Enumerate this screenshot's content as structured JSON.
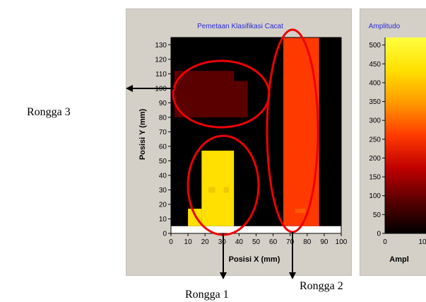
{
  "callouts": {
    "rongga_3": "Rongga 3",
    "rongga_1": "Rongga 1",
    "rongga_2": "Rongga 2"
  },
  "chart_data": [
    {
      "type": "heatmap",
      "title": "Pemetaan Klasifikasi Cacat",
      "xlabel": "Posisi X (mm)",
      "ylabel": "Posisi Y (mm)",
      "xlim": [
        0,
        100
      ],
      "ylim": [
        0,
        130
      ],
      "xticks": [
        0,
        10,
        20,
        30,
        40,
        50,
        60,
        70,
        80,
        90,
        100
      ],
      "yticks": [
        0,
        10,
        20,
        30,
        40,
        50,
        60,
        70,
        80,
        90,
        100,
        110,
        120,
        130
      ],
      "grid": false,
      "regions": [
        {
          "x": [
            0,
            100
          ],
          "y": [
            5,
            135
          ],
          "amplitude": 0,
          "color": "#000000"
        },
        {
          "x": [
            2,
            37
          ],
          "y": [
            80,
            112
          ],
          "amplitude": 115,
          "color": "#5a0000"
        },
        {
          "x": [
            37,
            45
          ],
          "y": [
            80,
            105
          ],
          "amplitude": 115,
          "color": "#5a0000"
        },
        {
          "x": [
            10,
            18
          ],
          "y": [
            5,
            17
          ],
          "amplitude": 480,
          "color": "#ffe000"
        },
        {
          "x": [
            18,
            37
          ],
          "y": [
            5,
            57
          ],
          "amplitude": 480,
          "color": "#ffe000"
        },
        {
          "x": [
            66,
            87
          ],
          "y": [
            5,
            135
          ],
          "amplitude": 330,
          "color": "#ff3a00"
        }
      ]
    },
    {
      "type": "heatmap",
      "title": "Amplitudo",
      "xlabel": "Ampl",
      "ylabel": "",
      "ylim": [
        0,
        520
      ],
      "yticks": [
        0,
        50,
        100,
        150,
        200,
        250,
        300,
        350,
        400,
        450,
        500
      ],
      "xticks": [
        "0",
        "10"
      ],
      "colormap": [
        "#000000",
        "#5a0000",
        "#c00000",
        "#ff3a00",
        "#ff9a00",
        "#ffe000",
        "#ffff40"
      ]
    }
  ],
  "annotations": {
    "ellipse_color": "#ee0000",
    "arrow_color": "#000000"
  }
}
